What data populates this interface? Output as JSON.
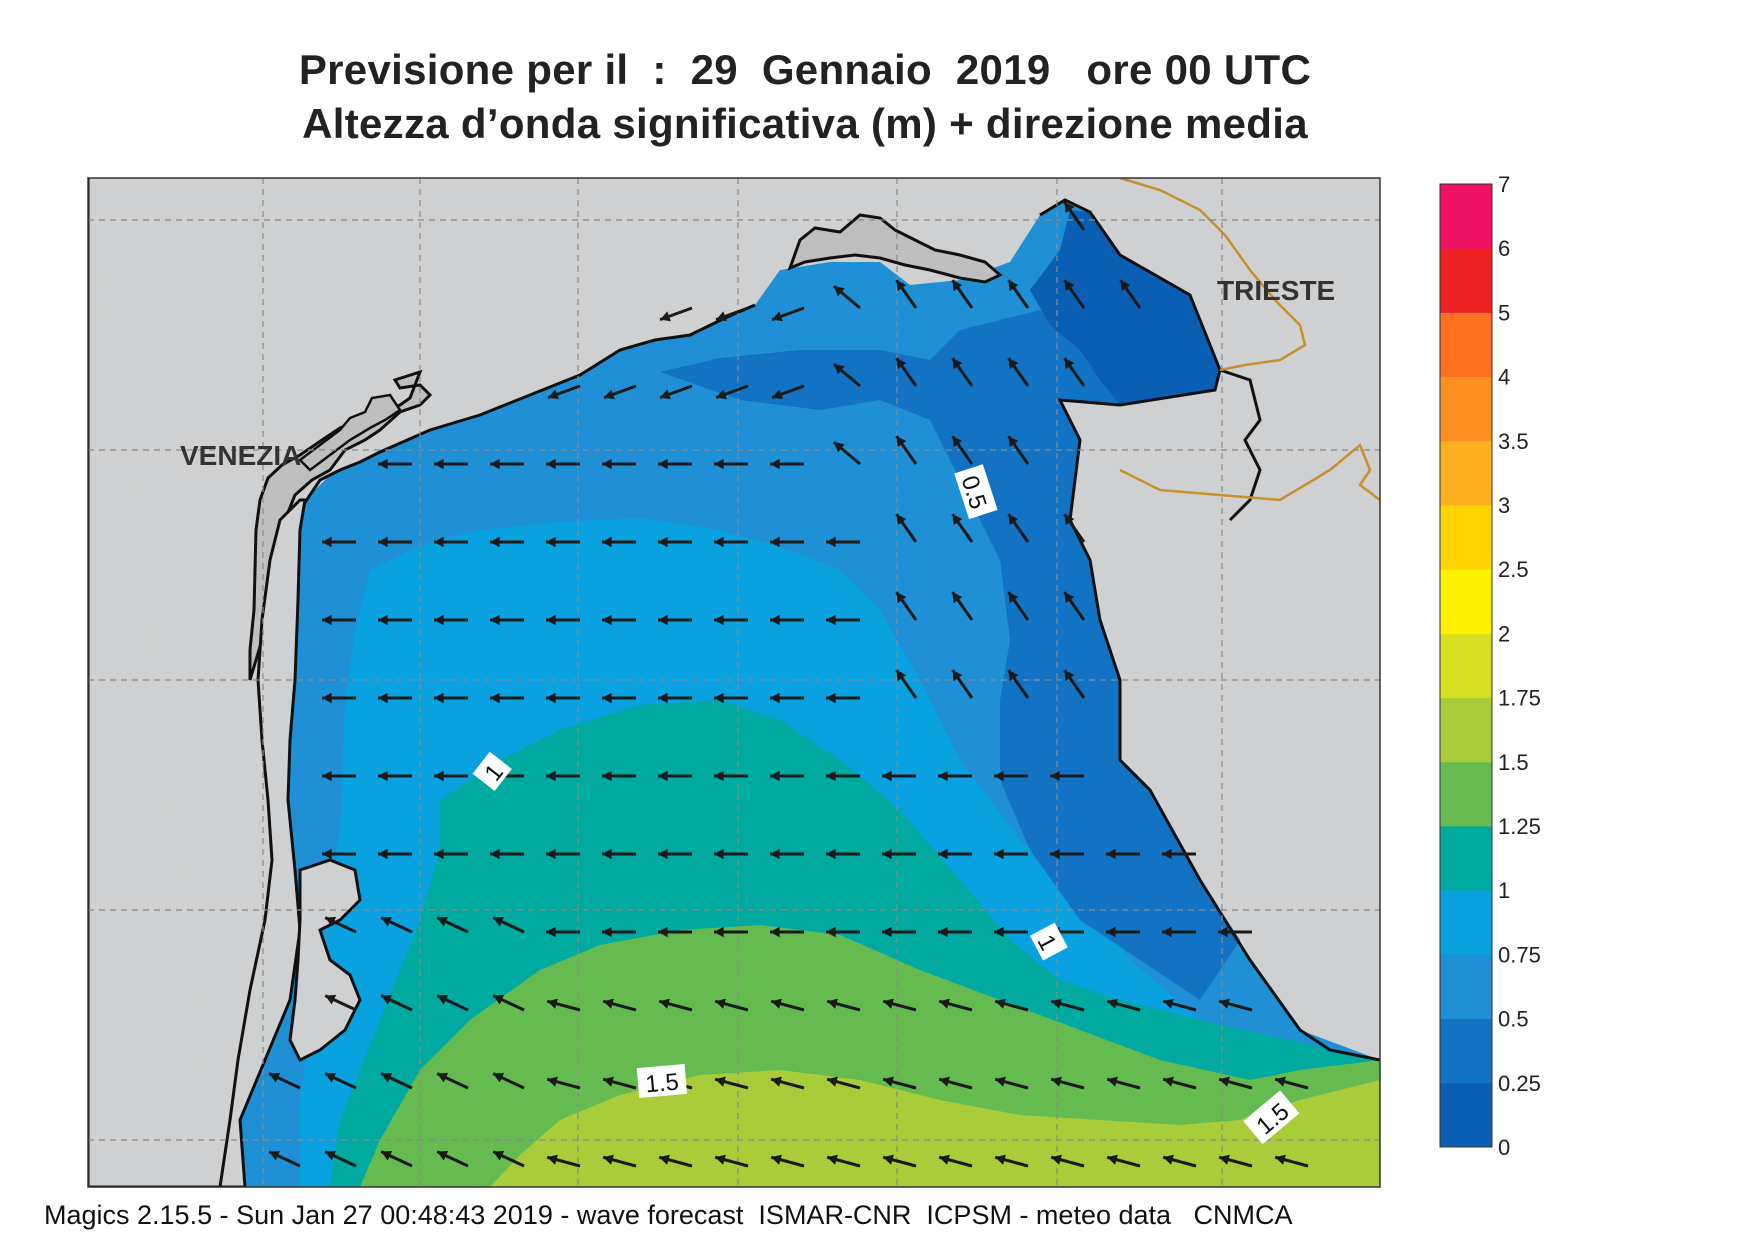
{
  "title_line1": "Previsione per il  :  29  Gennaio  2019   ore 00 UTC",
  "title_line2": "Altezza d’onda significativa (m) + direzione media",
  "footer": "Magics 2.15.5 - Sun Jan 27 00:48:43 2019 - wave forecast  ISMAR-CNR  ICPSM - meteo data   CNMCA",
  "places": {
    "venezia": "VENEZIA",
    "trieste": "TRIESTE"
  },
  "contour_labels": {
    "half": "0.5",
    "one_a": "1",
    "one_b": "1",
    "one_five_a": "1.5",
    "one_five_b": "1.5"
  },
  "legend": {
    "labels": [
      "0",
      "0.25",
      "0.5",
      "0.75",
      "1",
      "1.25",
      "1.5",
      "1.75",
      "2",
      "2.5",
      "3",
      "3.5",
      "4",
      "5",
      "6",
      "7"
    ],
    "colors": [
      "#0a5fb4",
      "#1273c4",
      "#1f8fd6",
      "#0aa1e0",
      "#00aaa0",
      "#66bb50",
      "#a8cc3a",
      "#d6e020",
      "#fff200",
      "#ffd400",
      "#ffb020",
      "#ff9020",
      "#ff7020",
      "#ee2222",
      "#ee1166"
    ]
  },
  "colors": {
    "land": "#cfd0d1",
    "lagoon": "#bfbfbf",
    "border": "#c8902a",
    "arrow": "#1a1a1a"
  }
}
